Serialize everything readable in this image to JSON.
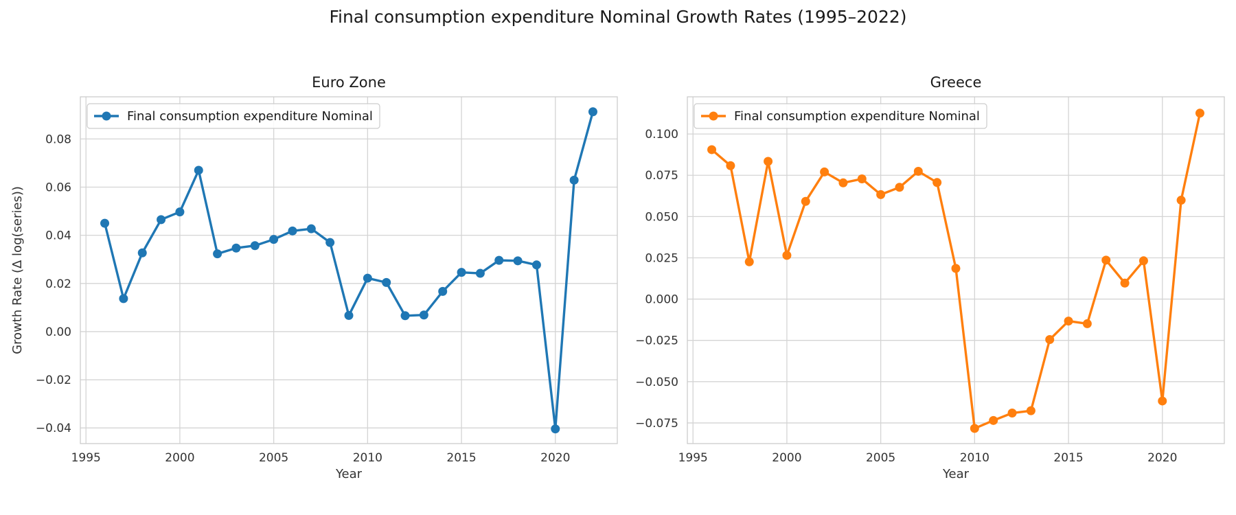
{
  "suptitle": "Final consumption expenditure Nominal Growth Rates (1995–2022)",
  "chart_data": [
    {
      "type": "line",
      "title": "Euro Zone",
      "xlabel": "Year",
      "ylabel": "Growth Rate (Δ log(series))",
      "xlim": [
        1994.7,
        2023.3
      ],
      "ylim": [
        -0.0465,
        0.0975
      ],
      "xticks": [
        1995,
        2000,
        2005,
        2010,
        2015,
        2020
      ],
      "xtick_labels": [
        "1995",
        "2000",
        "2005",
        "2010",
        "2015",
        "2020"
      ],
      "yticks": [
        -0.04,
        -0.02,
        0.0,
        0.02,
        0.04,
        0.06,
        0.08
      ],
      "ytick_labels": [
        "−0.04",
        "−0.02",
        "0.00",
        "0.02",
        "0.04",
        "0.06",
        "0.08"
      ],
      "grid": true,
      "legend_position": "top-left",
      "series": [
        {
          "name": "Final consumption expenditure Nominal",
          "color": "#1f77b4",
          "marker": "circle",
          "x": [
            1996,
            1997,
            1998,
            1999,
            2000,
            2001,
            2002,
            2003,
            2004,
            2005,
            2006,
            2007,
            2008,
            2009,
            2010,
            2011,
            2012,
            2013,
            2014,
            2015,
            2016,
            2017,
            2018,
            2019,
            2020,
            2021,
            2022
          ],
          "y": [
            0.045,
            0.0137,
            0.0327,
            0.0465,
            0.0497,
            0.067,
            0.0323,
            0.0347,
            0.0357,
            0.0383,
            0.0418,
            0.0427,
            0.037,
            0.0067,
            0.0222,
            0.0204,
            0.0066,
            0.0069,
            0.0167,
            0.0246,
            0.0242,
            0.0296,
            0.0294,
            0.0277,
            -0.0404,
            0.0629,
            0.0913
          ]
        }
      ]
    },
    {
      "type": "line",
      "title": "Greece",
      "xlabel": "Year",
      "ylabel": "",
      "xlim": [
        1994.7,
        2023.3
      ],
      "ylim": [
        -0.0875,
        0.1225
      ],
      "xticks": [
        1995,
        2000,
        2005,
        2010,
        2015,
        2020
      ],
      "xtick_labels": [
        "1995",
        "2000",
        "2005",
        "2010",
        "2015",
        "2020"
      ],
      "yticks": [
        -0.075,
        -0.05,
        -0.025,
        0.0,
        0.025,
        0.05,
        0.075,
        0.1
      ],
      "ytick_labels": [
        "−0.075",
        "−0.050",
        "−0.025",
        "0.000",
        "0.025",
        "0.050",
        "0.075",
        "0.100"
      ],
      "grid": true,
      "legend_position": "top-left",
      "series": [
        {
          "name": "Final consumption expenditure Nominal",
          "color": "#ff7f0e",
          "marker": "circle",
          "x": [
            1996,
            1997,
            1998,
            1999,
            2000,
            2001,
            2002,
            2003,
            2004,
            2005,
            2006,
            2007,
            2008,
            2009,
            2010,
            2011,
            2012,
            2013,
            2014,
            2015,
            2016,
            2017,
            2018,
            2019,
            2020,
            2021,
            2022
          ],
          "y": [
            0.0905,
            0.0808,
            0.0226,
            0.0834,
            0.0265,
            0.0592,
            0.077,
            0.0704,
            0.0728,
            0.0633,
            0.0677,
            0.0774,
            0.0706,
            0.0186,
            -0.0783,
            -0.0735,
            -0.069,
            -0.0676,
            -0.0245,
            -0.0133,
            -0.0149,
            0.0236,
            0.0097,
            0.0232,
            -0.0617,
            0.0599,
            0.1126
          ]
        }
      ]
    }
  ]
}
